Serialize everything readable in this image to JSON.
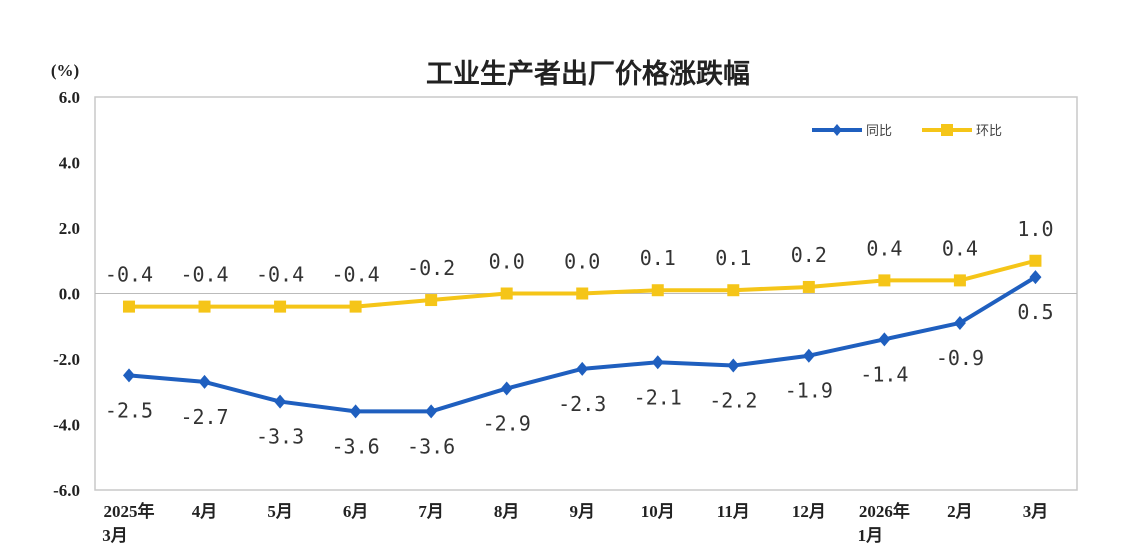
{
  "chart_data": {
    "type": "line",
    "title": "工业生产者出厂价格涨跌幅",
    "unit_label": "(%)",
    "ylim": [
      -6.0,
      6.0
    ],
    "yticks": [
      "6.0",
      "4.0",
      "2.0",
      "0.0",
      "-2.0",
      "-4.0",
      "-6.0"
    ],
    "categories": [
      [
        "2025年",
        "3月"
      ],
      [
        "4月"
      ],
      [
        "5月"
      ],
      [
        "6月"
      ],
      [
        "7月"
      ],
      [
        "8月"
      ],
      [
        "9月"
      ],
      [
        "10月"
      ],
      [
        "11月"
      ],
      [
        "12月"
      ],
      [
        "2026年",
        "1月"
      ],
      [
        "2月"
      ],
      [
        "3月"
      ]
    ],
    "legend_position": "top-right",
    "grid": false,
    "series": [
      {
        "name": "同比",
        "color": "#1f5fbf",
        "marker": "diamond",
        "values": [
          -2.5,
          -2.7,
          -3.3,
          -3.6,
          -3.6,
          -2.9,
          -2.3,
          -2.1,
          -2.2,
          -1.9,
          -1.4,
          -0.9,
          0.5
        ],
        "labels": [
          "-2.5",
          "-2.7",
          "-3.3",
          "-3.6",
          "-3.6",
          "-2.9",
          "-2.3",
          "-2.1",
          "-2.2",
          "-1.9",
          "-1.4",
          "-0.9",
          "0.5"
        ]
      },
      {
        "name": "环比",
        "color": "#f5c518",
        "marker": "square",
        "values": [
          -0.4,
          -0.4,
          -0.4,
          -0.4,
          -0.2,
          0.0,
          0.0,
          0.1,
          0.1,
          0.2,
          0.4,
          0.4,
          1.0
        ],
        "labels": [
          "-0.4",
          "-0.4",
          "-0.4",
          "-0.4",
          "-0.2",
          "0.0",
          "0.0",
          "0.1",
          "0.1",
          "0.2",
          "0.4",
          "0.4",
          "1.0"
        ]
      }
    ]
  }
}
